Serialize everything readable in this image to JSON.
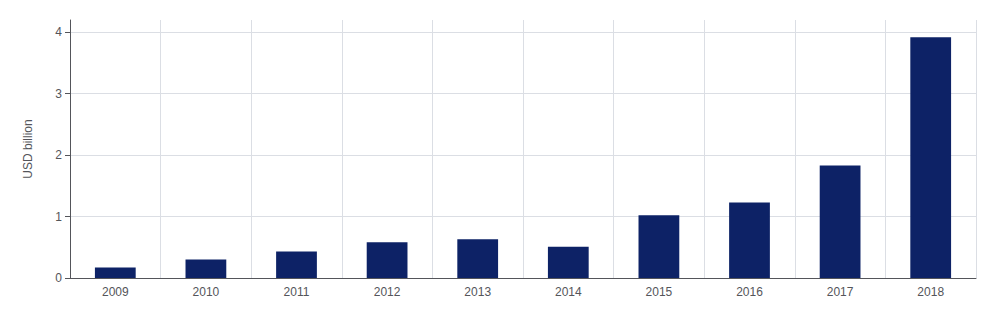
{
  "chart_data": {
    "type": "bar",
    "categories": [
      "2009",
      "2010",
      "2011",
      "2012",
      "2013",
      "2014",
      "2015",
      "2016",
      "2017",
      "2018"
    ],
    "values": [
      0.17,
      0.3,
      0.43,
      0.58,
      0.63,
      0.51,
      1.02,
      1.23,
      1.83,
      3.92
    ],
    "color": "#0d2266",
    "ylabel": "USD billion",
    "ylim": [
      0,
      4.2
    ],
    "yticks": [
      0,
      1,
      2,
      3,
      4
    ],
    "grid": true
  }
}
